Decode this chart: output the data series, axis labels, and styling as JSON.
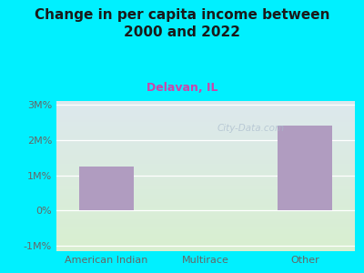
{
  "title": "Change in per capita income between\n2000 and 2022",
  "subtitle": "Delavan, IL",
  "categories": [
    "American Indian",
    "Multirace",
    "Other"
  ],
  "values": [
    1.25,
    0,
    2.4
  ],
  "bar_color": "#b09cc0",
  "background_outer": "#00f0ff",
  "background_plot_bottom": "#d8efd0",
  "background_plot_top": "#dde8ee",
  "title_color": "#1a1a1a",
  "subtitle_color": "#cc44aa",
  "tick_label_color": "#666666",
  "grid_color": "#ffffff",
  "ylim": [
    -1,
    3
  ],
  "yticks": [
    -1,
    0,
    1,
    2,
    3
  ],
  "ytick_labels": [
    "-1M%",
    "0%",
    "1M%",
    "2M%",
    "3M%"
  ],
  "watermark": "City-Data.com",
  "title_fontsize": 11,
  "subtitle_fontsize": 9,
  "tick_fontsize": 8
}
